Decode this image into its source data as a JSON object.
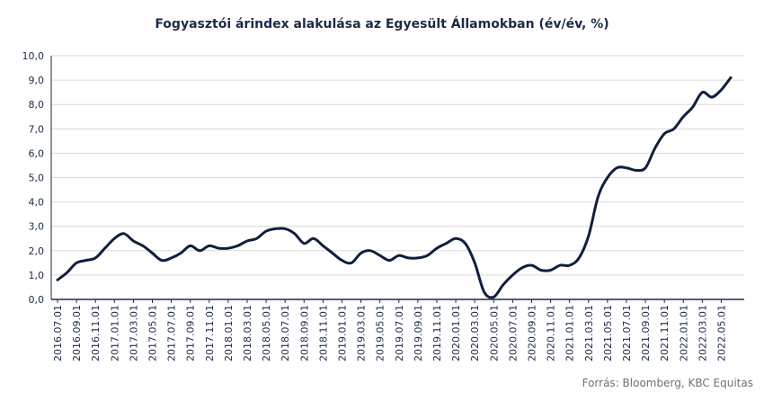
{
  "colors": {
    "line": "#0f1f3d",
    "grid": "#d9d9d9",
    "axis": "#1c2a48",
    "text": "#1c2a48",
    "source": "#707070"
  },
  "chart_data": {
    "type": "line",
    "title": "Fogyasztói árindex alakulása az Egyesült Államokban (év/év, %)",
    "source": "Forrás: Bloomberg, KBC Equitas",
    "xlabel": "",
    "ylabel": "",
    "ylim": [
      0,
      10
    ],
    "yticks": [
      "0,0",
      "1,0",
      "2,0",
      "3,0",
      "4,0",
      "5,0",
      "6,0",
      "7,0",
      "8,0",
      "9,0",
      "10,0"
    ],
    "grid": true,
    "x": [
      "2016.07.01",
      "2016.08.01",
      "2016.09.01",
      "2016.10.01",
      "2016.11.01",
      "2016.12.01",
      "2017.01.01",
      "2017.02.01",
      "2017.03.01",
      "2017.04.01",
      "2017.05.01",
      "2017.06.01",
      "2017.07.01",
      "2017.08.01",
      "2017.09.01",
      "2017.10.01",
      "2017.11.01",
      "2017.12.01",
      "2018.01.01",
      "2018.02.01",
      "2018.03.01",
      "2018.04.01",
      "2018.05.01",
      "2018.06.01",
      "2018.07.01",
      "2018.08.01",
      "2018.09.01",
      "2018.10.01",
      "2018.11.01",
      "2018.12.01",
      "2019.01.01",
      "2019.02.01",
      "2019.03.01",
      "2019.04.01",
      "2019.05.01",
      "2019.06.01",
      "2019.07.01",
      "2019.08.01",
      "2019.09.01",
      "2019.10.01",
      "2019.11.01",
      "2019.12.01",
      "2020.01.01",
      "2020.02.01",
      "2020.03.01",
      "2020.04.01",
      "2020.05.01",
      "2020.06.01",
      "2020.07.01",
      "2020.08.01",
      "2020.09.01",
      "2020.10.01",
      "2020.11.01",
      "2020.12.01",
      "2021.01.01",
      "2021.02.01",
      "2021.03.01",
      "2021.04.01",
      "2021.05.01",
      "2021.06.01",
      "2021.07.01",
      "2021.08.01",
      "2021.09.01",
      "2021.10.01",
      "2021.11.01",
      "2021.12.01",
      "2022.01.01",
      "2022.02.01",
      "2022.03.01",
      "2022.04.01",
      "2022.05.01",
      "2022.06.01"
    ],
    "xtick_labels": [
      "2016.07.01",
      "2016.09.01",
      "2016.11.01",
      "2017.01.01",
      "2017.03.01",
      "2017.05.01",
      "2017.07.01",
      "2017.09.01",
      "2017.11.01",
      "2018.01.01",
      "2018.03.01",
      "2018.05.01",
      "2018.07.01",
      "2018.09.01",
      "2018.11.01",
      "2019.01.01",
      "2019.03.01",
      "2019.05.01",
      "2019.07.01",
      "2019.09.01",
      "2019.11.01",
      "2020.01.01",
      "2020.03.01",
      "2020.05.01",
      "2020.07.01",
      "2020.09.01",
      "2020.11.01",
      "2021.01.01",
      "2021.03.01",
      "2021.05.01",
      "2021.07.01",
      "2021.09.01",
      "2021.11.01",
      "2022.01.01",
      "2022.03.01",
      "2022.05.01"
    ],
    "series": [
      {
        "values": [
          0.8,
          1.1,
          1.5,
          1.6,
          1.7,
          2.1,
          2.5,
          2.7,
          2.4,
          2.2,
          1.9,
          1.6,
          1.7,
          1.9,
          2.2,
          2.0,
          2.2,
          2.1,
          2.1,
          2.2,
          2.4,
          2.5,
          2.8,
          2.9,
          2.9,
          2.7,
          2.3,
          2.5,
          2.2,
          1.9,
          1.6,
          1.5,
          1.9,
          2.0,
          1.8,
          1.6,
          1.8,
          1.7,
          1.7,
          1.8,
          2.1,
          2.3,
          2.5,
          2.3,
          1.5,
          0.3,
          0.1,
          0.6,
          1.0,
          1.3,
          1.4,
          1.2,
          1.2,
          1.4,
          1.4,
          1.7,
          2.6,
          4.2,
          5.0,
          5.4,
          5.4,
          5.3,
          5.4,
          6.2,
          6.8,
          7.0,
          7.5,
          7.9,
          8.5,
          8.3,
          8.6,
          9.1
        ]
      }
    ]
  }
}
